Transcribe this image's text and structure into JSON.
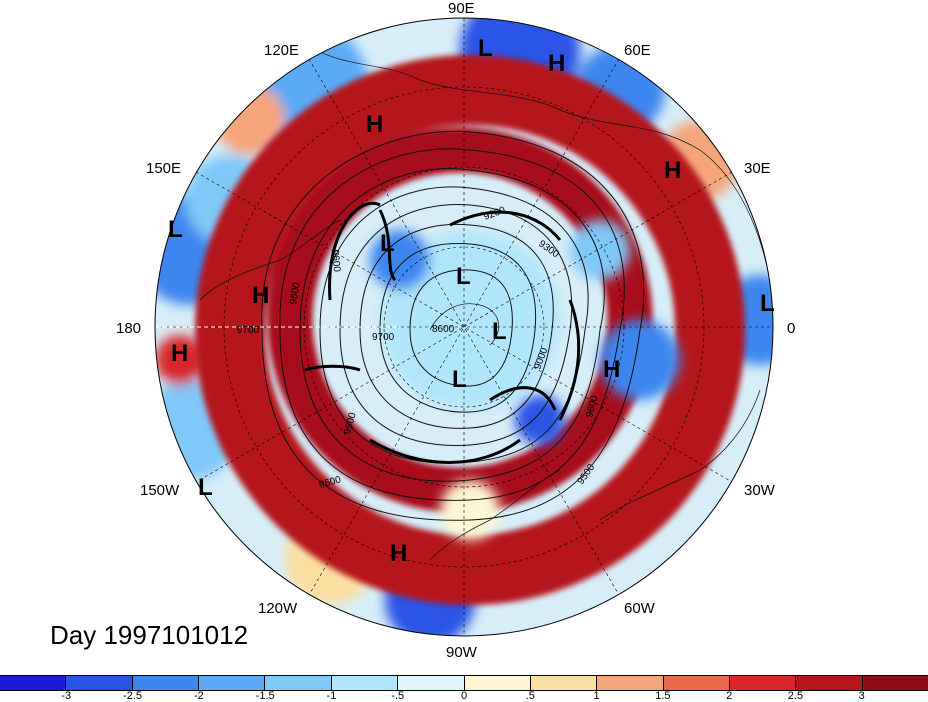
{
  "title": "Day 1997101012",
  "map": {
    "projection": "north-polar-stereographic",
    "longitude_labels": [
      {
        "text": "90E",
        "lon": 90
      },
      {
        "text": "60E",
        "lon": 60
      },
      {
        "text": "30E",
        "lon": 30
      },
      {
        "text": "0",
        "lon": 0
      },
      {
        "text": "30W",
        "lon": -30
      },
      {
        "text": "60W",
        "lon": -60
      },
      {
        "text": "90W",
        "lon": -90
      },
      {
        "text": "120W",
        "lon": -120
      },
      {
        "text": "150W",
        "lon": -150
      },
      {
        "text": "180",
        "lon": 180
      },
      {
        "text": "150E",
        "lon": 150
      },
      {
        "text": "120E",
        "lon": 120
      }
    ],
    "pressure_centers": [
      "L",
      "H",
      "H",
      "H",
      "L",
      "L",
      "L",
      "L",
      "H",
      "H",
      "H",
      "L",
      "L",
      "H"
    ],
    "contour_labels": [
      "9700",
      "9600",
      "9600",
      "9500",
      "9600",
      "9200",
      "9300",
      "8600",
      "9000",
      "9500",
      "9600",
      "9700"
    ]
  },
  "colorbar": {
    "tick_labels": [
      "-3",
      "-2.5",
      "-2",
      "-1.5",
      "-1",
      "-.5",
      "0",
      ".5",
      "1",
      "1.5",
      "2",
      "2.5",
      "3"
    ],
    "colors": [
      "#1a1ad9",
      "#2b54e6",
      "#3d86ef",
      "#5aaaf5",
      "#80c8f8",
      "#b0e6fb",
      "#e0f6fd",
      "#fdf6d2",
      "#fbdfa0",
      "#f4a57a",
      "#ec6a4c",
      "#d8262c",
      "#b5161c",
      "#8f0d14"
    ]
  },
  "colors": {
    "ring": "#a8101a",
    "land_line": "#111111"
  }
}
